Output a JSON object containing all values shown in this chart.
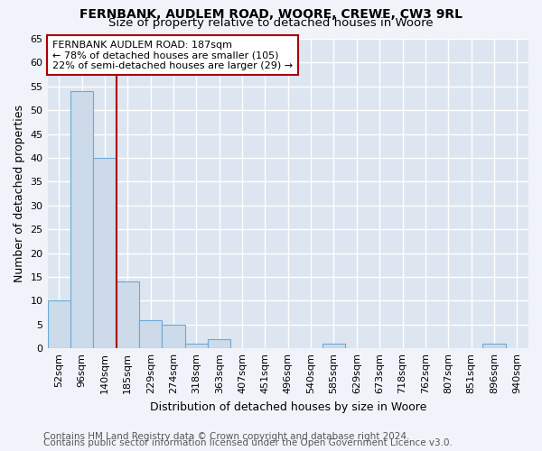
{
  "title_line1": "FERNBANK, AUDLEM ROAD, WOORE, CREWE, CW3 9RL",
  "title_line2": "Size of property relative to detached houses in Woore",
  "xlabel": "Distribution of detached houses by size in Woore",
  "ylabel": "Number of detached properties",
  "categories": [
    "52sqm",
    "96sqm",
    "140sqm",
    "185sqm",
    "229sqm",
    "274sqm",
    "318sqm",
    "363sqm",
    "407sqm",
    "451sqm",
    "496sqm",
    "540sqm",
    "585sqm",
    "629sqm",
    "673sqm",
    "718sqm",
    "762sqm",
    "807sqm",
    "851sqm",
    "896sqm",
    "940sqm"
  ],
  "values": [
    10,
    54,
    40,
    14,
    6,
    5,
    1,
    2,
    0,
    0,
    0,
    0,
    1,
    0,
    0,
    0,
    0,
    0,
    0,
    1,
    0
  ],
  "bar_color": "#ccdaea",
  "bar_edge_color": "#6aaad4",
  "vline_x": 2.5,
  "vline_color": "#aa0000",
  "ylim": [
    0,
    65
  ],
  "yticks": [
    0,
    5,
    10,
    15,
    20,
    25,
    30,
    35,
    40,
    45,
    50,
    55,
    60,
    65
  ],
  "annotation_box_text": "FERNBANK AUDLEM ROAD: 187sqm\n← 78% of detached houses are smaller (105)\n22% of semi-detached houses are larger (29) →",
  "annotation_box_color": "#ffffff",
  "annotation_box_edge_color": "#aa0000",
  "footer_line1": "Contains HM Land Registry data © Crown copyright and database right 2024.",
  "footer_line2": "Contains public sector information licensed under the Open Government Licence v3.0.",
  "background_color": "#f0f4fa",
  "plot_background_color": "#dde6f0",
  "grid_color": "#ffffff",
  "title_fontsize": 10,
  "subtitle_fontsize": 9.5,
  "label_fontsize": 9,
  "tick_fontsize": 8,
  "footer_fontsize": 7.5,
  "footer_color": "#555555"
}
